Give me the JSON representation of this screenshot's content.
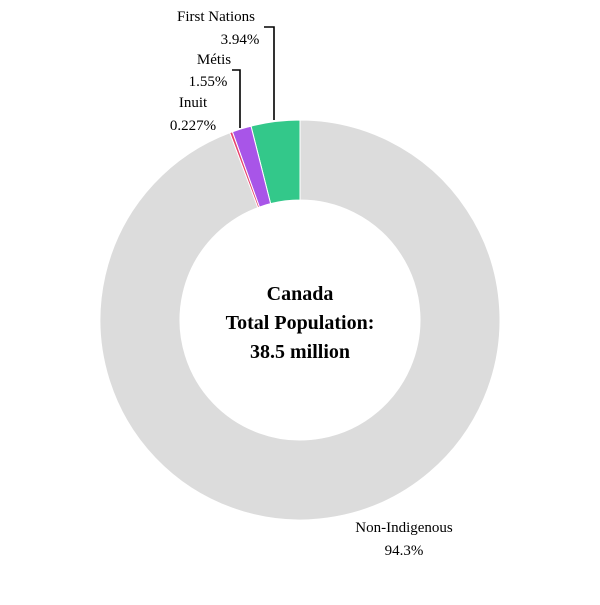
{
  "chart_data": {
    "type": "pie",
    "variant": "donut",
    "center_text": [
      "Canada",
      "Total Population:",
      "38.5 million"
    ],
    "slices": [
      {
        "name": "First Nations",
        "value_label": "3.94%",
        "value": 3.94,
        "color": "#33c88a"
      },
      {
        "name": "Métis",
        "value_label": "1.55%",
        "value": 1.55,
        "color": "#a855e8"
      },
      {
        "name": "Inuit",
        "value_label": "0.227%",
        "value": 0.227,
        "color": "#e8446e"
      },
      {
        "name": "Non-Indigenous",
        "value_label": "94.3%",
        "value": 94.3,
        "color": "#dcdcdc"
      }
    ],
    "start_angle": "12 o'clock",
    "direction": "counter-clockwise",
    "legend": "none"
  }
}
